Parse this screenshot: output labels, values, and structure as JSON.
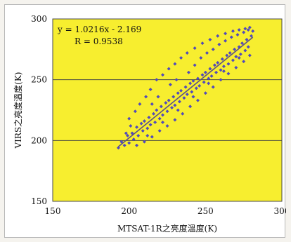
{
  "chart_data": {
    "type": "scatter",
    "title": "",
    "xlabel": "MTSAT-1R之亮度溫度(K)",
    "ylabel": "VIRS之亮度溫度(K)",
    "xlim": [
      150,
      300
    ],
    "ylim": [
      150,
      300
    ],
    "xticks": [
      "150",
      "200",
      "250",
      "300"
    ],
    "yticks": [
      "150",
      "200",
      "250",
      "300"
    ],
    "grid": "horizontal",
    "legend": "none",
    "annotations": [
      "y = 1.0216x - 2.169",
      "R = 0.9538"
    ],
    "trendline": {
      "slope": 1.0216,
      "intercept": -2.169,
      "x_range": [
        193,
        281
      ]
    },
    "series": [
      {
        "values": [
          [
            193,
            194
          ],
          [
            195,
            199
          ],
          [
            197,
            196
          ],
          [
            199,
            204
          ],
          [
            200,
            198
          ],
          [
            202,
            206
          ],
          [
            203,
            201
          ],
          [
            205,
            211
          ],
          [
            206,
            204
          ],
          [
            208,
            214
          ],
          [
            209,
            208
          ],
          [
            210,
            216
          ],
          [
            212,
            210
          ],
          [
            213,
            219
          ],
          [
            214,
            213
          ],
          [
            216,
            222
          ],
          [
            217,
            215
          ],
          [
            218,
            225
          ],
          [
            220,
            218
          ],
          [
            221,
            228
          ],
          [
            222,
            221
          ],
          [
            224,
            231
          ],
          [
            225,
            224
          ],
          [
            226,
            233
          ],
          [
            228,
            227
          ],
          [
            229,
            236
          ],
          [
            230,
            229
          ],
          [
            232,
            239
          ],
          [
            233,
            232
          ],
          [
            234,
            241
          ],
          [
            236,
            235
          ],
          [
            237,
            244
          ],
          [
            238,
            238
          ],
          [
            240,
            247
          ],
          [
            241,
            240
          ],
          [
            242,
            249
          ],
          [
            244,
            243
          ],
          [
            245,
            251
          ],
          [
            246,
            245
          ],
          [
            248,
            254
          ],
          [
            249,
            248
          ],
          [
            250,
            256
          ],
          [
            252,
            251
          ],
          [
            253,
            259
          ],
          [
            254,
            253
          ],
          [
            256,
            262
          ],
          [
            257,
            256
          ],
          [
            258,
            264
          ],
          [
            260,
            258
          ],
          [
            261,
            267
          ],
          [
            262,
            261
          ],
          [
            264,
            270
          ],
          [
            265,
            263
          ],
          [
            266,
            272
          ],
          [
            268,
            266
          ],
          [
            269,
            275
          ],
          [
            270,
            269
          ],
          [
            272,
            277
          ],
          [
            273,
            271
          ],
          [
            274,
            280
          ],
          [
            276,
            274
          ],
          [
            277,
            283
          ],
          [
            278,
            277
          ],
          [
            280,
            286
          ],
          [
            281,
            290
          ],
          [
            200,
            218
          ],
          [
            204,
            224
          ],
          [
            207,
            230
          ],
          [
            211,
            236
          ],
          [
            214,
            242
          ],
          [
            218,
            250
          ],
          [
            222,
            254
          ],
          [
            226,
            259
          ],
          [
            230,
            263
          ],
          [
            234,
            268
          ],
          [
            238,
            272
          ],
          [
            243,
            276
          ],
          [
            248,
            280
          ],
          [
            253,
            283
          ],
          [
            258,
            286
          ],
          [
            263,
            288
          ],
          [
            268,
            290
          ],
          [
            272,
            291
          ],
          [
            276,
            292
          ],
          [
            279,
            293
          ],
          [
            205,
            196
          ],
          [
            210,
            199
          ],
          [
            215,
            203
          ],
          [
            220,
            208
          ],
          [
            225,
            212
          ],
          [
            230,
            217
          ],
          [
            235,
            222
          ],
          [
            240,
            228
          ],
          [
            245,
            233
          ],
          [
            250,
            239
          ],
          [
            255,
            244
          ],
          [
            260,
            250
          ],
          [
            265,
            255
          ],
          [
            270,
            260
          ],
          [
            275,
            265
          ],
          [
            279,
            270
          ],
          [
            198,
            206
          ],
          [
            201,
            212
          ],
          [
            215,
            230
          ],
          [
            219,
            236
          ],
          [
            227,
            246
          ],
          [
            231,
            250
          ],
          [
            239,
            256
          ],
          [
            243,
            262
          ],
          [
            247,
            268
          ],
          [
            251,
            272
          ],
          [
            255,
            275
          ],
          [
            259,
            279
          ],
          [
            263,
            282
          ],
          [
            267,
            285
          ],
          [
            271,
            287
          ],
          [
            275,
            289
          ],
          [
            278,
            291
          ],
          [
            212,
            204
          ],
          [
            222,
            215
          ],
          [
            232,
            225
          ],
          [
            242,
            236
          ],
          [
            252,
            247
          ],
          [
            262,
            257
          ],
          [
            272,
            268
          ]
        ]
      }
    ]
  }
}
